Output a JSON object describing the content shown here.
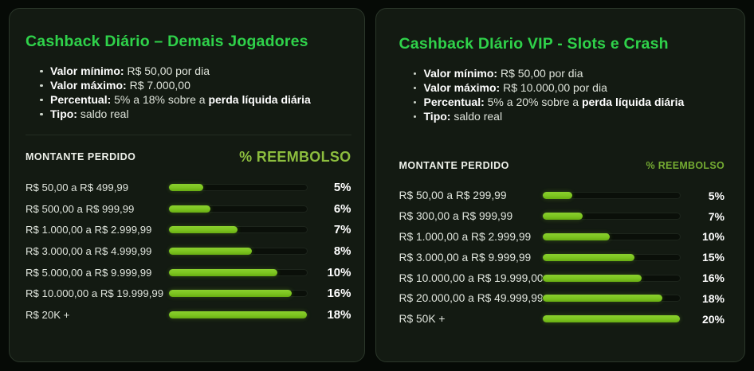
{
  "colors": {
    "page_bg": "#060a06",
    "card_bg": "#131a12",
    "card_border": "#2b372a",
    "title_green": "#2fd24a",
    "bar_fill": "#7cc41f",
    "bar_fill_light": "#8ad02e",
    "reembolso_green_left": "#8cbd3e",
    "reembolso_green_right": "#74ab32"
  },
  "cards": [
    {
      "title": "Cashback Diário – Demais Jogadores",
      "bullets": [
        {
          "label": "Valor mínimo:",
          "mid": " R$ 50,00 por dia",
          "strong": ""
        },
        {
          "label": "Valor máximo:",
          "mid": " R$ 7.000,00",
          "strong": ""
        },
        {
          "label": "Percentual:",
          "mid": " 5% a 18% sobre a ",
          "strong": "perda líquida diária"
        },
        {
          "label": "Tipo:",
          "mid": " saldo real",
          "strong": ""
        }
      ],
      "table": {
        "col_amount": "MONTANTE PERDIDO",
        "col_pct": "% REEMBOLSO",
        "rows": [
          {
            "range": "R$ 50,00 a R$ 499,99",
            "fill": 25,
            "pct": "5%"
          },
          {
            "range": "R$ 500,00 a R$ 999,99",
            "fill": 30,
            "pct": "6%"
          },
          {
            "range": "R$ 1.000,00 a R$ 2.999,99",
            "fill": 50,
            "pct": "7%"
          },
          {
            "range": "R$ 3.000,00 a R$ 4.999,99",
            "fill": 60,
            "pct": "8%"
          },
          {
            "range": "R$ 5.000,00 a R$ 9.999,99",
            "fill": 79,
            "pct": "10%"
          },
          {
            "range": "R$ 10.000,00 a R$ 19.999,99",
            "fill": 89,
            "pct": "16%"
          },
          {
            "range": "R$ 20K +",
            "fill": 100,
            "pct": "18%"
          }
        ]
      }
    },
    {
      "title": "Cashback DIário VIP - Slots e Crash",
      "bullets": [
        {
          "label": "Valor mínimo:",
          "mid": " R$ 50,00 por dia",
          "strong": ""
        },
        {
          "label": "Valor máximo:",
          "mid": " R$ 10.000,00 por dia",
          "strong": ""
        },
        {
          "label": "Percentual:",
          "mid": " 5% a 20% sobre a ",
          "strong": "perda líquida diária"
        },
        {
          "label": "Tipo:",
          "mid": " saldo real",
          "strong": ""
        }
      ],
      "table": {
        "col_amount": "MONTANTE PERDIDO",
        "col_pct": "% REEMBOLSO",
        "rows": [
          {
            "range": "R$ 50,00 a R$ 299,99",
            "fill": 22,
            "pct": "5%"
          },
          {
            "range": "R$ 300,00 a R$ 999,99",
            "fill": 29,
            "pct": "7%"
          },
          {
            "range": "R$ 1.000,00 a R$ 2.999,99",
            "fill": 49,
            "pct": "10%"
          },
          {
            "range": "R$ 3.000,00 a R$ 9.999,99",
            "fill": 67,
            "pct": "15%"
          },
          {
            "range": "R$ 10.000,00 a R$ 19.999,00",
            "fill": 72,
            "pct": "16%"
          },
          {
            "range": "R$ 20.000,00 a R$ 49.999,99",
            "fill": 87,
            "pct": "18%"
          },
          {
            "range": "R$ 50K +",
            "fill": 100,
            "pct": "20%"
          }
        ]
      }
    }
  ],
  "chart_data": [
    {
      "type": "bar",
      "title": "Cashback Diário – Demais Jogadores",
      "xlabel": "MONTANTE PERDIDO",
      "ylabel": "% REEMBOLSO",
      "categories": [
        "R$ 50,00 a R$ 499,99",
        "R$ 500,00 a R$ 999,99",
        "R$ 1.000,00 a R$ 2.999,99",
        "R$ 3.000,00 a R$ 4.999,99",
        "R$ 5.000,00 a R$ 9.999,99",
        "R$ 10.000,00 a R$ 19.999,99",
        "R$ 20K +"
      ],
      "values": [
        5,
        6,
        7,
        8,
        10,
        16,
        18
      ],
      "unit": "%",
      "bar_fill_percent_of_track": [
        25,
        30,
        50,
        60,
        79,
        89,
        100
      ],
      "legend": false,
      "grid": false
    },
    {
      "type": "bar",
      "title": "Cashback DIário VIP - Slots e Crash",
      "xlabel": "MONTANTE PERDIDO",
      "ylabel": "% REEMBOLSO",
      "categories": [
        "R$ 50,00 a R$ 299,99",
        "R$ 300,00 a R$ 999,99",
        "R$ 1.000,00 a R$ 2.999,99",
        "R$ 3.000,00 a R$ 9.999,99",
        "R$ 10.000,00 a R$ 19.999,00",
        "R$ 20.000,00 a R$ 49.999,99",
        "R$ 50K +"
      ],
      "values": [
        5,
        7,
        10,
        15,
        16,
        18,
        20
      ],
      "unit": "%",
      "bar_fill_percent_of_track": [
        22,
        29,
        49,
        67,
        72,
        87,
        100
      ],
      "legend": false,
      "grid": false
    }
  ]
}
